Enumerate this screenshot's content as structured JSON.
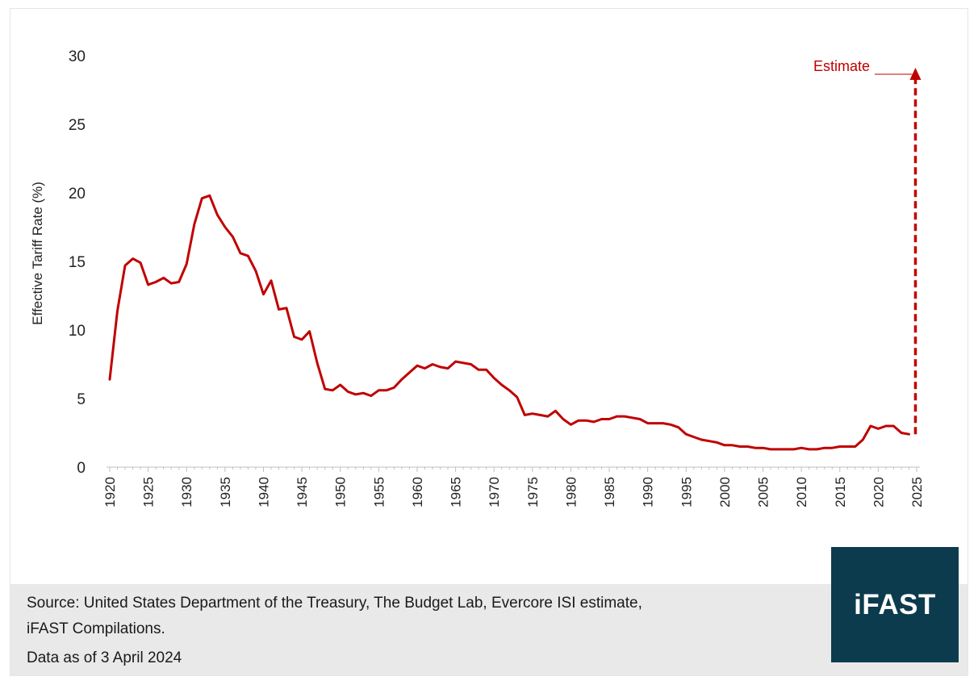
{
  "chart_data": {
    "type": "line",
    "title": "",
    "xlabel": "",
    "ylabel": "Effective Tariff Rate (%)",
    "xlim": [
      1920,
      2025
    ],
    "ylim": [
      0,
      30
    ],
    "y_ticks": [
      "0",
      "5",
      "10",
      "15",
      "20",
      "25",
      "30"
    ],
    "x_ticks": [
      "1920",
      "1925",
      "1930",
      "1935",
      "1940",
      "1945",
      "1950",
      "1955",
      "1960",
      "1965",
      "1970",
      "1975",
      "1980",
      "1985",
      "1990",
      "1995",
      "2000",
      "2005",
      "2010",
      "2015",
      "2020",
      "2025"
    ],
    "grid": false,
    "line_color": "#c00000",
    "series": [
      {
        "x": [
          1920,
          1921,
          1922,
          1923,
          1924,
          1925,
          1926,
          1927,
          1928,
          1929,
          1930,
          1931,
          1932,
          1933,
          1934,
          1935,
          1936,
          1937,
          1938,
          1939,
          1940,
          1941,
          1942,
          1943,
          1944,
          1945,
          1946,
          1947,
          1948,
          1949,
          1950,
          1951,
          1952,
          1953,
          1954,
          1955,
          1956,
          1957,
          1958,
          1959,
          1960,
          1961,
          1962,
          1963,
          1964,
          1965,
          1966,
          1967,
          1968,
          1969,
          1970,
          1971,
          1972,
          1973,
          1974,
          1975,
          1976,
          1977,
          1978,
          1979,
          1980,
          1981,
          1982,
          1983,
          1984,
          1985,
          1986,
          1987,
          1988,
          1989,
          1990,
          1991,
          1992,
          1993,
          1994,
          1995,
          1996,
          1997,
          1998,
          1999,
          2000,
          2001,
          2002,
          2003,
          2004,
          2005,
          2006,
          2007,
          2008,
          2009,
          2010,
          2011,
          2012,
          2013,
          2014,
          2015,
          2016,
          2017,
          2018,
          2019,
          2020,
          2021,
          2022,
          2023,
          2024
        ],
        "y": [
          6.4,
          11.4,
          14.7,
          15.2,
          14.9,
          13.3,
          13.5,
          13.8,
          13.4,
          13.5,
          14.8,
          17.7,
          19.6,
          19.8,
          18.4,
          17.5,
          16.8,
          15.6,
          15.4,
          14.3,
          12.6,
          13.6,
          11.5,
          11.6,
          9.5,
          9.3,
          9.9,
          7.6,
          5.7,
          5.6,
          6.0,
          5.5,
          5.3,
          5.4,
          5.2,
          5.6,
          5.6,
          5.8,
          6.4,
          6.9,
          7.4,
          7.2,
          7.5,
          7.3,
          7.2,
          7.7,
          7.6,
          7.5,
          7.1,
          7.1,
          6.5,
          6.0,
          5.6,
          5.1,
          3.8,
          3.9,
          3.8,
          3.7,
          4.1,
          3.5,
          3.1,
          3.4,
          3.4,
          3.3,
          3.5,
          3.5,
          3.7,
          3.7,
          3.6,
          3.5,
          3.2,
          3.2,
          3.2,
          3.1,
          2.9,
          2.4,
          2.2,
          2.0,
          1.9,
          1.8,
          1.6,
          1.6,
          1.5,
          1.5,
          1.4,
          1.4,
          1.3,
          1.3,
          1.3,
          1.3,
          1.4,
          1.3,
          1.3,
          1.4,
          1.4,
          1.5,
          1.5,
          1.5,
          2.0,
          3.0,
          2.8,
          3.0,
          3.0,
          2.5,
          2.4
        ]
      }
    ],
    "estimate": {
      "label": "Estimate",
      "x": 2024,
      "from_y": 2.4,
      "to_y": 29.0,
      "style": "dashed-arrow"
    }
  },
  "footer": {
    "source_line1": "Source: United States Department of the Treasury, The Budget Lab, Evercore ISI estimate,",
    "source_line2": "iFAST Compilations.",
    "date_line": "Data as of 3 April 2024",
    "logo_text": "iFAST",
    "logo_color": "#0d3b4e"
  }
}
